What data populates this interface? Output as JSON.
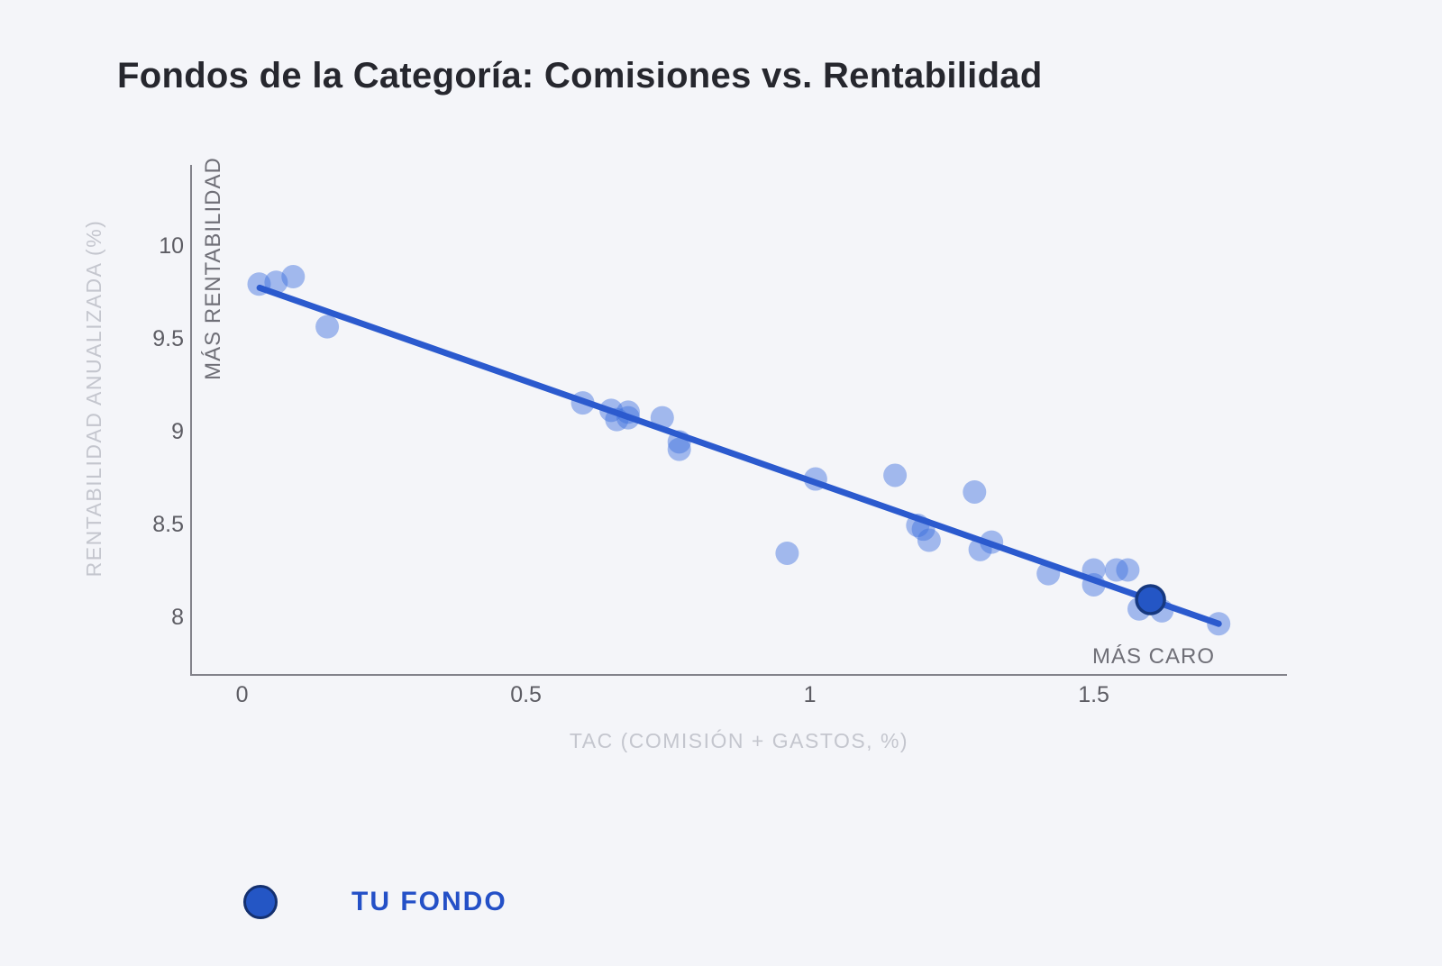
{
  "header": {
    "title": "Fondos de la Categoría: Comisiones vs. Rentabilidad"
  },
  "legend": {
    "label": "TU FONDO",
    "dot_color": "#2456c5",
    "dot_border_color": "#14306f"
  },
  "colors": {
    "background": "#f4f5f9",
    "category_point": "#3b6fdd",
    "trend_line": "#2b5ace",
    "tu_fondo_fill": "#2456c5",
    "tu_fondo_stroke": "#16387f",
    "axis": "#83838b",
    "tick_text": "#5d5d64",
    "axis_title_text": "#c4c6ce",
    "annotation_text": "#6f6f77"
  },
  "chart_data": {
    "type": "scatter",
    "title": "Fondos de la Categoría: Comisiones vs. Rentabilidad",
    "xlabel": "TAC (COMISIÓN + GASTOS, %)",
    "ylabel": "RENTABILIDAD ANUALIZADA (%)",
    "annotations": [
      "MÁS RENTABILIDAD",
      "MÁS CARO"
    ],
    "x_ticks": [
      0,
      0.5,
      1,
      1.5
    ],
    "y_ticks": [
      10,
      9.5,
      9,
      8.5,
      8
    ],
    "xlim": [
      -0.09,
      1.84
    ],
    "ylim": [
      7.68,
      10.43
    ],
    "grid": false,
    "legend_position": "bottom-left",
    "series": [
      {
        "name": "fondos de la categoría",
        "points": [
          [
            0.03,
            9.79
          ],
          [
            0.06,
            9.8
          ],
          [
            0.09,
            9.83
          ],
          [
            0.15,
            9.56
          ],
          [
            0.6,
            9.15
          ],
          [
            0.65,
            9.11
          ],
          [
            0.66,
            9.06
          ],
          [
            0.68,
            9.1
          ],
          [
            0.68,
            9.07
          ],
          [
            0.74,
            9.07
          ],
          [
            0.77,
            8.94
          ],
          [
            0.77,
            8.9
          ],
          [
            0.96,
            8.34
          ],
          [
            1.01,
            8.74
          ],
          [
            1.15,
            8.76
          ],
          [
            1.19,
            8.49
          ],
          [
            1.2,
            8.47
          ],
          [
            1.21,
            8.41
          ],
          [
            1.29,
            8.67
          ],
          [
            1.3,
            8.36
          ],
          [
            1.32,
            8.4
          ],
          [
            1.42,
            8.23
          ],
          [
            1.5,
            8.25
          ],
          [
            1.5,
            8.17
          ],
          [
            1.54,
            8.25
          ],
          [
            1.56,
            8.25
          ],
          [
            1.58,
            8.04
          ],
          [
            1.62,
            8.03
          ],
          [
            1.72,
            7.96
          ]
        ]
      },
      {
        "name": "TU FONDO",
        "points": [
          [
            1.6,
            8.09
          ]
        ]
      }
    ],
    "trend_line": {
      "x": [
        0.031,
        1.72
      ],
      "y": [
        9.77,
        7.96
      ]
    }
  }
}
